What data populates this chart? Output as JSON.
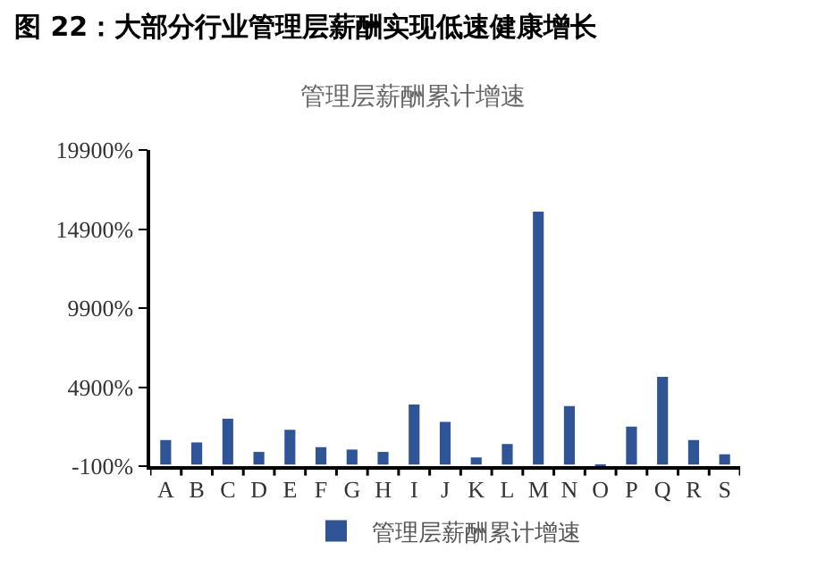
{
  "chart_data": {
    "type": "bar",
    "title": "图 22：大部分行业管理层薪酬实现低速健康增长",
    "subtitle": "管理层薪酬累计增速",
    "categories": [
      "A",
      "B",
      "C",
      "D",
      "E",
      "F",
      "G",
      "H",
      "I",
      "J",
      "K",
      "L",
      "M",
      "N",
      "O",
      "P",
      "Q",
      "R",
      "S"
    ],
    "series": [
      {
        "name": "管理层薪酬累计增速",
        "color": "#2f5597",
        "values": [
          1550,
          1400,
          2900,
          800,
          2200,
          1100,
          950,
          800,
          3800,
          2700,
          450,
          1300,
          16000,
          3700,
          -50,
          2400,
          5550,
          1550,
          650
        ]
      }
    ],
    "ylim": [
      -100,
      19900
    ],
    "yticks": [
      {
        "value": -100,
        "label": "-100%"
      },
      {
        "value": 4900,
        "label": "4900%"
      },
      {
        "value": 9900,
        "label": "9900%"
      },
      {
        "value": 14900,
        "label": "14900%"
      },
      {
        "value": 19900,
        "label": "19900%"
      }
    ],
    "grid": false,
    "legend": "bottom"
  }
}
